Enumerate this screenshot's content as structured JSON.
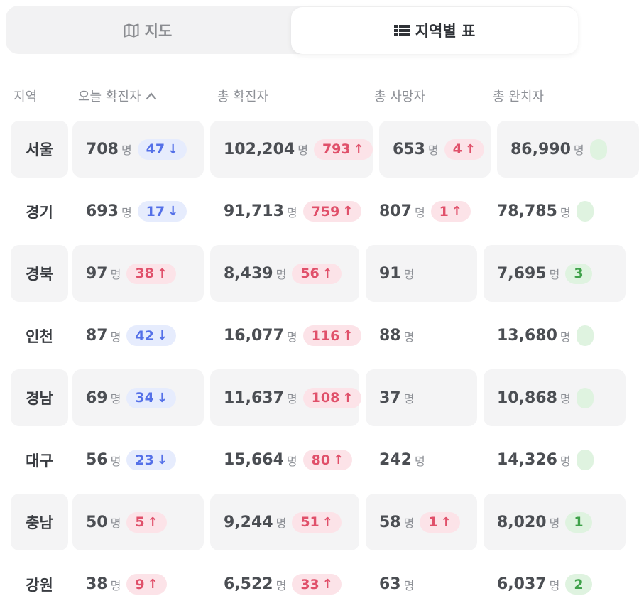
{
  "tabs": [
    {
      "label": "지도",
      "icon": "map-icon",
      "active": false
    },
    {
      "label": "지역별 표",
      "icon": "list-icon",
      "active": true
    }
  ],
  "columns": {
    "region": "지역",
    "today": "오늘 확진자",
    "total": "총 확진자",
    "deaths": "총 사망자",
    "recovered": "총 완치자"
  },
  "unit": "명",
  "colors": {
    "down": "#5470e8",
    "up": "#e0506a",
    "green": "#3fa24a"
  },
  "rows": [
    {
      "region": "서울",
      "today": "708",
      "today_delta": "47",
      "today_dir": "down",
      "total": "102,204",
      "total_delta": "793",
      "deaths": "653",
      "deaths_delta": "4",
      "recovered": "86,990",
      "recovered_delta": ""
    },
    {
      "region": "경기",
      "today": "693",
      "today_delta": "17",
      "today_dir": "down",
      "total": "91,713",
      "total_delta": "759",
      "deaths": "807",
      "deaths_delta": "1",
      "recovered": "78,785",
      "recovered_delta": ""
    },
    {
      "region": "경북",
      "today": "97",
      "today_delta": "38",
      "today_dir": "up",
      "total": "8,439",
      "total_delta": "56",
      "deaths": "91",
      "deaths_delta": "",
      "recovered": "7,695",
      "recovered_delta": "3"
    },
    {
      "region": "인천",
      "today": "87",
      "today_delta": "42",
      "today_dir": "down",
      "total": "16,077",
      "total_delta": "116",
      "deaths": "88",
      "deaths_delta": "",
      "recovered": "13,680",
      "recovered_delta": ""
    },
    {
      "region": "경남",
      "today": "69",
      "today_delta": "34",
      "today_dir": "down",
      "total": "11,637",
      "total_delta": "108",
      "deaths": "37",
      "deaths_delta": "",
      "recovered": "10,868",
      "recovered_delta": ""
    },
    {
      "region": "대구",
      "today": "56",
      "today_delta": "23",
      "today_dir": "down",
      "total": "15,664",
      "total_delta": "80",
      "deaths": "242",
      "deaths_delta": "",
      "recovered": "14,326",
      "recovered_delta": ""
    },
    {
      "region": "충남",
      "today": "50",
      "today_delta": "5",
      "today_dir": "up",
      "total": "9,244",
      "total_delta": "51",
      "deaths": "58",
      "deaths_delta": "1",
      "recovered": "8,020",
      "recovered_delta": "1"
    },
    {
      "region": "강원",
      "today": "38",
      "today_delta": "9",
      "today_dir": "up",
      "total": "6,522",
      "total_delta": "33",
      "deaths": "63",
      "deaths_delta": "",
      "recovered": "6,037",
      "recovered_delta": "2"
    }
  ]
}
